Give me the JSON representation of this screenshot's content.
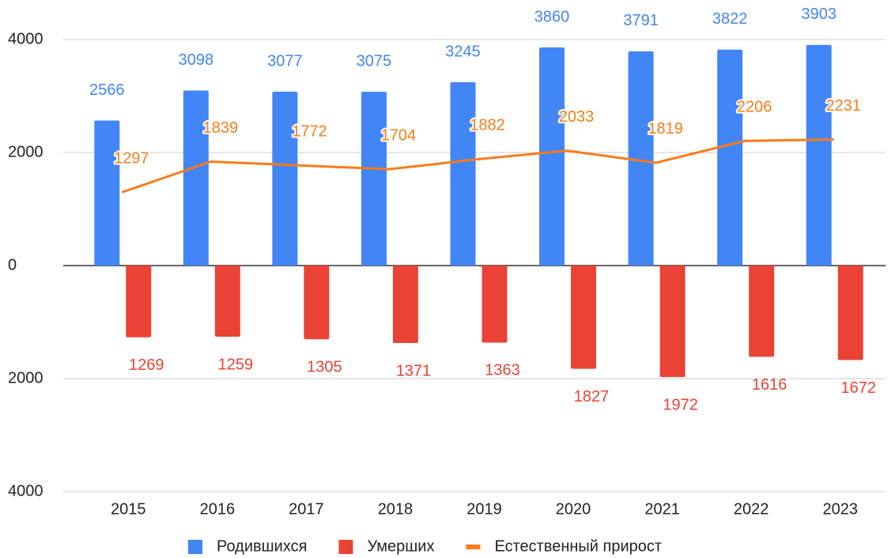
{
  "chart_data": {
    "type": "bar-line",
    "categories": [
      "2015",
      "2016",
      "2017",
      "2018",
      "2019",
      "2020",
      "2021",
      "2022",
      "2023"
    ],
    "series": [
      {
        "name": "Родившихся",
        "type": "bar",
        "color": "#4285f4",
        "values": [
          2566,
          3098,
          3077,
          3075,
          3245,
          3860,
          3791,
          3822,
          3903
        ]
      },
      {
        "name": "Умерших",
        "type": "bar",
        "color": "#ea4335",
        "values": [
          -1269,
          -1259,
          -1305,
          -1371,
          -1363,
          -1827,
          -1972,
          -1616,
          -1672
        ],
        "value_labels": [
          "1269",
          "1259",
          "1305",
          "1371",
          "1363",
          "1827",
          "1972",
          "1616",
          "1672"
        ]
      },
      {
        "name": "Естественный прирост",
        "type": "line",
        "color": "#fa7b17",
        "values": [
          1297,
          1839,
          1772,
          1704,
          1882,
          2033,
          1819,
          2206,
          2231
        ]
      }
    ],
    "ylim": [
      -4000,
      4000
    ],
    "yticks": [
      {
        "value": -4000,
        "label": "4000"
      },
      {
        "value": -2000,
        "label": "2000"
      },
      0,
      2000,
      4000
    ],
    "grid": true,
    "legend": "bottom"
  }
}
